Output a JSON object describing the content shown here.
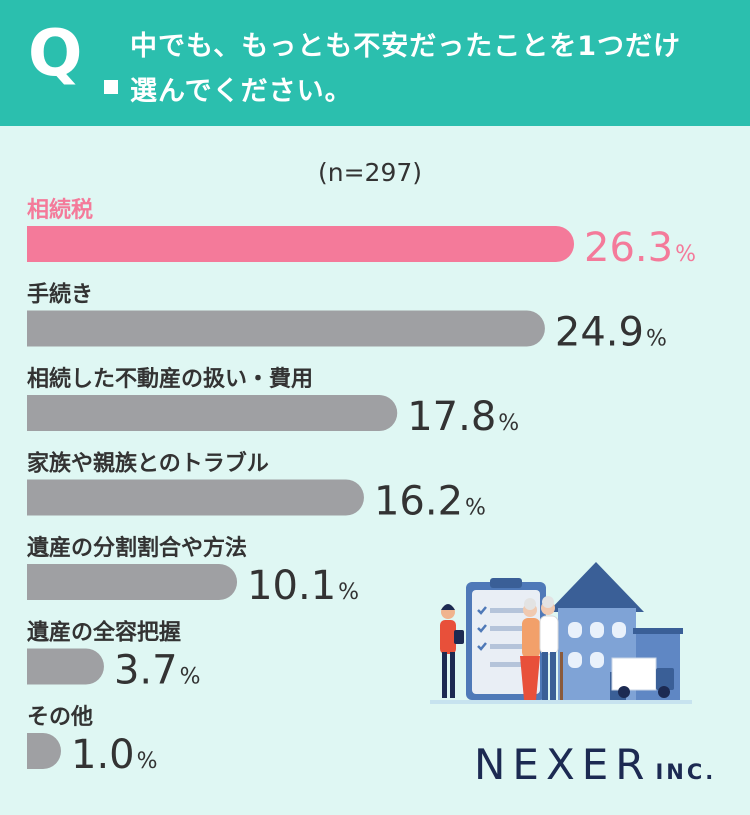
{
  "question": {
    "mark": "Q",
    "line1": "中でも、もっとも不安だったことを1つだけ",
    "line2": "選んでください。"
  },
  "sample_size": "(n=297)",
  "colors": {
    "header_bg": "#2bbfae",
    "page_bg": "#dff7f3",
    "highlight": "#f47a9a",
    "bar_gray": "#9fa0a3",
    "text_dark": "#333333",
    "logo": "#1c2a52"
  },
  "brand": {
    "name": "NEXER",
    "suffix": "INC."
  },
  "chart_data": {
    "type": "bar",
    "orientation": "horizontal",
    "categories": [
      "相続税",
      "手続き",
      "相続した不動産の扱い・費用",
      "家族や親族とのトラブル",
      "遺産の分割割合や方法",
      "遺産の全容把握",
      "その他"
    ],
    "values": [
      26.3,
      24.9,
      17.8,
      16.2,
      10.1,
      3.7,
      1.0
    ],
    "unit": "%",
    "highlight_index": 0,
    "xlim": [
      0,
      30
    ],
    "grid": false
  }
}
